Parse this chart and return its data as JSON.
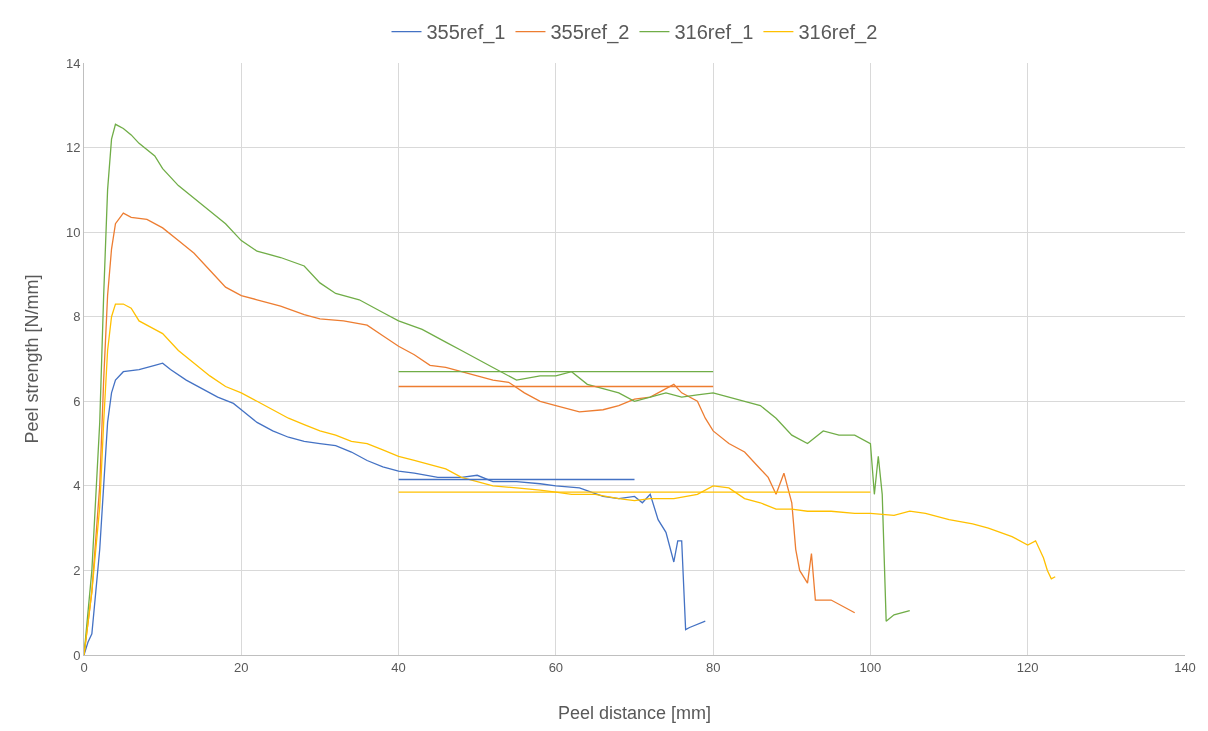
{
  "chart_data": {
    "type": "line",
    "xlabel": "Peel distance [mm]",
    "ylabel": "Peel strength [N/mm]",
    "xlim": [
      0,
      140
    ],
    "xticks": [
      0,
      20,
      40,
      60,
      80,
      100,
      120,
      140
    ],
    "ylim": [
      0,
      14
    ],
    "yticks": [
      0,
      2,
      4,
      6,
      8,
      10,
      12,
      14
    ],
    "grid": true,
    "legend": "top",
    "marker": "none",
    "line_style": "solid",
    "series": [
      {
        "name": "355ref_1",
        "color": "#4472c4",
        "x": [
          0,
          0.5,
          1,
          1.5,
          2,
          2.5,
          3,
          3.5,
          4,
          5,
          7,
          9,
          10,
          11,
          13,
          15,
          17,
          19,
          20,
          22,
          24,
          26,
          28,
          30,
          32,
          34,
          36,
          38,
          40,
          42,
          45,
          48,
          50,
          52,
          55,
          58,
          60,
          63,
          66,
          68,
          70,
          71,
          72,
          73,
          74,
          75,
          75.5,
          76,
          76.5,
          77,
          79
        ],
        "values": [
          0,
          0.3,
          0.5,
          1.5,
          2.5,
          4,
          5.5,
          6.2,
          6.5,
          6.7,
          6.75,
          6.85,
          6.9,
          6.75,
          6.5,
          6.3,
          6.1,
          5.95,
          5.8,
          5.5,
          5.3,
          5.15,
          5.05,
          5,
          4.95,
          4.8,
          4.6,
          4.45,
          4.35,
          4.3,
          4.2,
          4.2,
          4.25,
          4.1,
          4.1,
          4.05,
          4,
          3.95,
          3.75,
          3.7,
          3.75,
          3.6,
          3.8,
          3.2,
          2.9,
          2.2,
          2.7,
          2.7,
          0.6,
          0.65,
          0.8
        ]
      },
      {
        "name": "355ref_2",
        "color": "#ed7d31",
        "x": [
          0,
          1,
          2,
          2.5,
          3,
          3.5,
          4,
          5,
          6,
          8,
          10,
          12,
          14,
          16,
          18,
          20,
          22,
          25,
          28,
          30,
          33,
          36,
          38,
          40,
          42,
          44,
          46,
          48,
          50,
          52,
          54,
          56,
          58,
          60,
          63,
          66,
          68,
          70,
          72,
          74,
          75,
          76,
          78,
          79,
          80,
          82,
          84,
          86,
          87,
          88,
          89,
          90,
          90.5,
          91,
          92,
          92.5,
          93,
          95,
          97,
          98
        ],
        "values": [
          0,
          1.5,
          4,
          6.5,
          8.5,
          9.6,
          10.2,
          10.45,
          10.35,
          10.3,
          10.1,
          9.8,
          9.5,
          9.1,
          8.7,
          8.5,
          8.4,
          8.25,
          8.05,
          7.95,
          7.9,
          7.8,
          7.55,
          7.3,
          7.1,
          6.85,
          6.8,
          6.7,
          6.6,
          6.5,
          6.45,
          6.2,
          6,
          5.9,
          5.75,
          5.8,
          5.9,
          6.05,
          6.1,
          6.3,
          6.4,
          6.2,
          6,
          5.6,
          5.3,
          5,
          4.8,
          4.4,
          4.2,
          3.8,
          4.3,
          3.6,
          2.5,
          2,
          1.7,
          2.4,
          1.3,
          1.3,
          1.1,
          1
        ]
      },
      {
        "name": "316ref_1",
        "color": "#70ad47",
        "x": [
          0,
          1,
          2,
          2.5,
          3,
          3.5,
          4,
          5,
          6,
          7,
          9,
          10,
          12,
          14,
          16,
          18,
          20,
          22,
          25,
          28,
          30,
          32,
          35,
          38,
          40,
          43,
          46,
          48,
          50,
          52,
          55,
          58,
          60,
          62,
          64,
          66,
          68,
          70,
          72,
          74,
          76,
          78,
          80,
          82,
          84,
          86,
          88,
          90,
          92,
          94,
          96,
          98,
          100,
          100.5,
          101,
          101.5,
          102,
          103,
          105
        ],
        "values": [
          0,
          2,
          5.5,
          8.5,
          11,
          12.2,
          12.55,
          12.45,
          12.3,
          12.1,
          11.8,
          11.5,
          11.1,
          10.8,
          10.5,
          10.2,
          9.8,
          9.55,
          9.4,
          9.2,
          8.8,
          8.55,
          8.4,
          8.1,
          7.9,
          7.7,
          7.4,
          7.2,
          7,
          6.8,
          6.5,
          6.6,
          6.6,
          6.7,
          6.4,
          6.3,
          6.2,
          6,
          6.1,
          6.2,
          6.1,
          6.15,
          6.2,
          6.1,
          6,
          5.9,
          5.6,
          5.2,
          5,
          5.3,
          5.2,
          5.2,
          5,
          3.8,
          4.7,
          3.8,
          0.8,
          0.95,
          1.05
        ]
      },
      {
        "name": "316ref_2",
        "color": "#ffc000",
        "x": [
          0,
          1,
          2,
          2.5,
          3,
          3.5,
          4,
          5,
          6,
          7,
          9,
          10,
          12,
          14,
          16,
          18,
          20,
          22,
          24,
          26,
          28,
          30,
          32,
          34,
          36,
          38,
          40,
          42,
          44,
          46,
          48,
          50,
          52,
          55,
          58,
          60,
          62,
          65,
          68,
          70,
          72,
          75,
          78,
          80,
          82,
          84,
          86,
          88,
          90,
          92,
          95,
          98,
          100,
          103,
          105,
          107,
          110,
          113,
          115,
          118,
          120,
          121,
          122,
          122.5,
          123,
          123.5
        ],
        "values": [
          0,
          1.5,
          3.5,
          5.5,
          7.2,
          8,
          8.3,
          8.3,
          8.2,
          7.9,
          7.7,
          7.6,
          7.2,
          6.9,
          6.6,
          6.35,
          6.2,
          6,
          5.8,
          5.6,
          5.45,
          5.3,
          5.2,
          5.05,
          5,
          4.85,
          4.7,
          4.6,
          4.5,
          4.4,
          4.2,
          4.1,
          4,
          3.95,
          3.9,
          3.85,
          3.8,
          3.8,
          3.7,
          3.65,
          3.7,
          3.7,
          3.8,
          4,
          3.95,
          3.7,
          3.6,
          3.45,
          3.45,
          3.4,
          3.4,
          3.35,
          3.35,
          3.3,
          3.4,
          3.35,
          3.2,
          3.1,
          3,
          2.8,
          2.6,
          2.7,
          2.3,
          2,
          1.8,
          1.85
        ]
      },
      {
        "color": "#4472c4",
        "x": [
          40,
          70
        ],
        "values": [
          4.15,
          4.15
        ]
      },
      {
        "color": "#ed7d31",
        "x": [
          40,
          80
        ],
        "values": [
          6.35,
          6.35
        ]
      },
      {
        "color": "#70ad47",
        "x": [
          40,
          80
        ],
        "values": [
          6.7,
          6.7
        ]
      },
      {
        "color": "#ffc000",
        "x": [
          40,
          100
        ],
        "values": [
          3.85,
          3.85
        ]
      }
    ]
  }
}
